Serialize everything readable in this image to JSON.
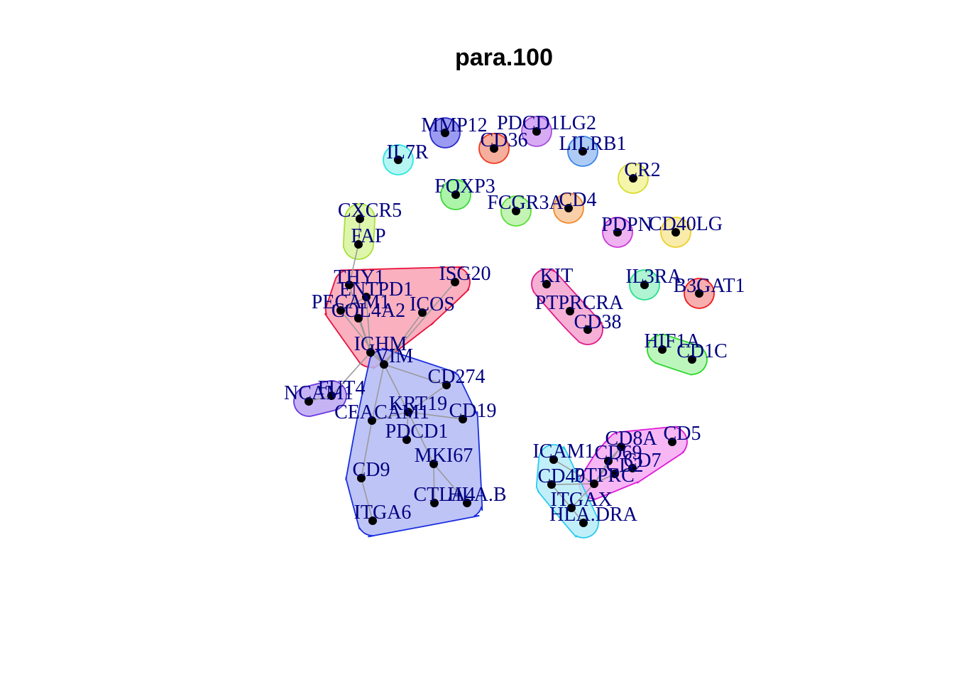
{
  "title": "para.100",
  "nodes": [
    {
      "id": "MMP12",
      "label": "MMP12",
      "group": "g_mmp12"
    },
    {
      "id": "PDCD1LG2",
      "label": "PDCD1LG2",
      "group": "g_pdcd1lg2"
    },
    {
      "id": "CD36",
      "label": "CD36",
      "group": "g_cd36"
    },
    {
      "id": "LILRB1",
      "label": "LILRB1",
      "group": "g_lilrb1"
    },
    {
      "id": "IL7R",
      "label": "IL7R",
      "group": "g_il7r"
    },
    {
      "id": "CR2",
      "label": "CR2",
      "group": "g_cr2"
    },
    {
      "id": "FOXP3",
      "label": "FOXP3",
      "group": "g_foxp3"
    },
    {
      "id": "FCGR3A",
      "label": "FCGR3A",
      "group": "g_fcgr3a"
    },
    {
      "id": "CD4",
      "label": "CD4",
      "group": "g_cd4"
    },
    {
      "id": "CXCR5",
      "label": "CXCR5",
      "group": "g_cxcr5"
    },
    {
      "id": "FAP",
      "label": "FAP",
      "group": "g_cxcr5"
    },
    {
      "id": "PDPN",
      "label": "PDPN",
      "group": "g_pdpn"
    },
    {
      "id": "CD40LG",
      "label": "CD40LG",
      "group": "g_cd40lg"
    },
    {
      "id": "THY1",
      "label": "THY1",
      "group": "g_red"
    },
    {
      "id": "ISG20",
      "label": "ISG20",
      "group": "g_red"
    },
    {
      "id": "ENTPD1",
      "label": "ENTPD1",
      "group": "g_red"
    },
    {
      "id": "PECAM1",
      "label": "PECAM1",
      "group": "g_red"
    },
    {
      "id": "COL4A2",
      "label": "COL4A2",
      "group": "g_red"
    },
    {
      "id": "ICOS",
      "label": "ICOS",
      "group": "g_red"
    },
    {
      "id": "IGHM",
      "label": "IGHM",
      "group": "g_red"
    },
    {
      "id": "KIT",
      "label": "KIT",
      "group": "g_kit"
    },
    {
      "id": "PTPRCRA",
      "label": "PTPRCRA",
      "group": "g_kit"
    },
    {
      "id": "CD38",
      "label": "CD38",
      "group": "g_kit"
    },
    {
      "id": "IL3RA",
      "label": "IL3RA",
      "group": "g_il3ra"
    },
    {
      "id": "B3GAT1",
      "label": "B3GAT1",
      "group": "g_b3gat1"
    },
    {
      "id": "HIF1A",
      "label": "HIF1A",
      "group": "g_hif1a"
    },
    {
      "id": "CD1C",
      "label": "CD1C",
      "group": "g_hif1a"
    },
    {
      "id": "VIM",
      "label": "VIM",
      "group": "g_blue"
    },
    {
      "id": "CD274",
      "label": "CD274",
      "group": "g_blue"
    },
    {
      "id": "FUT4",
      "label": "FUT4",
      "group": "g_ncam1"
    },
    {
      "id": "NCAM1",
      "label": "NCAM1",
      "group": "g_ncam1"
    },
    {
      "id": "KRT19",
      "label": "KRT19",
      "group": "g_blue"
    },
    {
      "id": "CEACAM1",
      "label": "CEACAM1",
      "group": "g_blue"
    },
    {
      "id": "CD19",
      "label": "CD19",
      "group": "g_blue"
    },
    {
      "id": "PDCD1",
      "label": "PDCD1",
      "group": "g_blue"
    },
    {
      "id": "MKI67",
      "label": "MKI67",
      "group": "g_blue"
    },
    {
      "id": "CD9",
      "label": "CD9",
      "group": "g_blue"
    },
    {
      "id": "CTLA4",
      "label": "CTLA4",
      "group": "g_blue"
    },
    {
      "id": "HLA.B",
      "label": "HLA.B",
      "group": "g_blue"
    },
    {
      "id": "ITGA6",
      "label": "ITGA6",
      "group": "g_blue"
    },
    {
      "id": "CD8A",
      "label": "CD8A",
      "group": "g_magenta"
    },
    {
      "id": "CD5",
      "label": "CD5",
      "group": "g_magenta"
    },
    {
      "id": "ICAM1",
      "label": "ICAM1",
      "group": "g_cyan"
    },
    {
      "id": "CD69",
      "label": "CD69",
      "group": "g_magenta"
    },
    {
      "id": "CD7",
      "label": "CD7",
      "group": "g_magenta"
    },
    {
      "id": "CD2",
      "label": "CD2",
      "group": "g_magenta"
    },
    {
      "id": "CD40",
      "label": "CD40",
      "group": "g_cyan"
    },
    {
      "id": "PTPRC",
      "label": "PTPRC",
      "group": "g_magenta"
    },
    {
      "id": "ITGAX",
      "label": "ITGAX",
      "group": "g_cyan"
    },
    {
      "id": "HLA.DRA",
      "label": "HLA.DRA",
      "group": "g_cyan"
    }
  ],
  "edges": [
    [
      "CXCR5",
      "FAP"
    ],
    [
      "FAP",
      "THY1"
    ],
    [
      "THY1",
      "IGHM"
    ],
    [
      "ENTPD1",
      "IGHM"
    ],
    [
      "PECAM1",
      "ENTPD1"
    ],
    [
      "COL4A2",
      "IGHM"
    ],
    [
      "PECAM1",
      "VIM"
    ],
    [
      "ISG20",
      "VIM"
    ],
    [
      "ICOS",
      "VIM"
    ],
    [
      "IGHM",
      "VIM"
    ],
    [
      "IGHM",
      "FUT4"
    ],
    [
      "FUT4",
      "NCAM1"
    ],
    [
      "VIM",
      "CD274"
    ],
    [
      "VIM",
      "KRT19"
    ],
    [
      "VIM",
      "CEACAM1"
    ],
    [
      "KRT19",
      "CD19"
    ],
    [
      "KRT19",
      "PDCD1"
    ],
    [
      "KRT19",
      "CEACAM1"
    ],
    [
      "KRT19",
      "MKI67"
    ],
    [
      "CEACAM1",
      "CD9"
    ],
    [
      "CD9",
      "ITGA6"
    ],
    [
      "MKI67",
      "CTLA4"
    ],
    [
      "MKI67",
      "HLA.B"
    ],
    [
      "CD274",
      "KRT19"
    ],
    [
      "ICAM1",
      "PTPRC"
    ],
    [
      "CD40",
      "PTPRC"
    ],
    [
      "PTPRC",
      "CD69"
    ],
    [
      "PTPRC",
      "CD8A"
    ],
    [
      "PTPRC",
      "CD2"
    ],
    [
      "CD2",
      "CD7"
    ],
    [
      "CD69",
      "CD8A"
    ],
    [
      "PTPRC",
      "ITGAX"
    ],
    [
      "ITGAX",
      "HLA.DRA"
    ],
    [
      "CD40",
      "ITGAX"
    ]
  ],
  "groups": [
    {
      "id": "g_mmp12",
      "fill": "#8a8aee",
      "stroke": "#2a2acc"
    },
    {
      "id": "g_pdcd1lg2",
      "fill": "#cf9cf2",
      "stroke": "#a64ee0"
    },
    {
      "id": "g_cd36",
      "fill": "#f5a08c",
      "stroke": "#ee3b20"
    },
    {
      "id": "g_lilrb1",
      "fill": "#9fc2f2",
      "stroke": "#3b86e8"
    },
    {
      "id": "g_il7r",
      "fill": "#a8f5f0",
      "stroke": "#2ee6dd"
    },
    {
      "id": "g_cr2",
      "fill": "#f3f59d",
      "stroke": "#d8dc2a"
    },
    {
      "id": "g_foxp3",
      "fill": "#9df29a",
      "stroke": "#3fd83a"
    },
    {
      "id": "g_fcgr3a",
      "fill": "#b8f2a6",
      "stroke": "#5ade3a"
    },
    {
      "id": "g_cd4",
      "fill": "#f8c79a",
      "stroke": "#f08a2a"
    },
    {
      "id": "g_cxcr5",
      "fill": "#d8f59e",
      "stroke": "#a8e03a"
    },
    {
      "id": "g_pdpn",
      "fill": "#eca6ee",
      "stroke": "#cc3ad8"
    },
    {
      "id": "g_cd40lg",
      "fill": "#f8e79a",
      "stroke": "#eed02a"
    },
    {
      "id": "g_red",
      "fill": "#f9a2b4",
      "stroke": "#e8103a"
    },
    {
      "id": "g_kit",
      "fill": "#f5a2cf",
      "stroke": "#e01a8a"
    },
    {
      "id": "g_il3ra",
      "fill": "#a2f2cc",
      "stroke": "#2ae08c"
    },
    {
      "id": "g_b3gat1",
      "fill": "#f5a0a0",
      "stroke": "#ee1a1a"
    },
    {
      "id": "g_hif1a",
      "fill": "#b2f5b2",
      "stroke": "#2ad82a"
    },
    {
      "id": "g_blue",
      "fill": "#b3baf5",
      "stroke": "#1a2ee0"
    },
    {
      "id": "g_ncam1",
      "fill": "#bba6f2",
      "stroke": "#6a3ae0"
    },
    {
      "id": "g_magenta",
      "fill": "#f5aaf2",
      "stroke": "#e01ad8"
    },
    {
      "id": "g_cyan",
      "fill": "#b6ecf8",
      "stroke": "#2accee"
    }
  ]
}
